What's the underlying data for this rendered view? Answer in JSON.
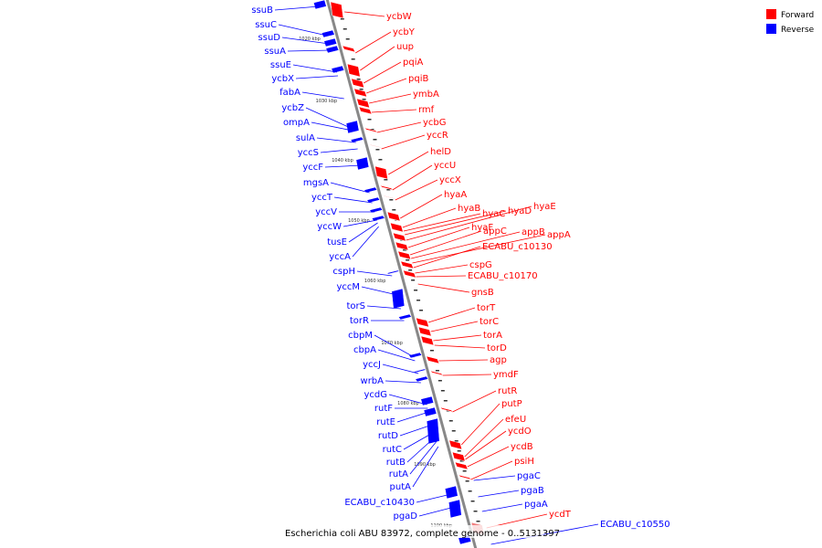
{
  "caption": "Escherichia coli ABU 83972, complete genome - 0..5131397",
  "legend": {
    "forward_label": "Forward",
    "reverse_label": "Reverse",
    "forward_color": "#ff0000",
    "reverse_color": "#0000ff"
  },
  "colors": {
    "axis": "#888888",
    "faded_forward": "#f08080"
  },
  "kbp_ticks": [
    "1020 kbp",
    "1030 kbp",
    "1040 kbp",
    "1050 kbp",
    "1060 kbp",
    "1070 kbp",
    "1080 kbp",
    "1090 kbp",
    "1100 kbp"
  ],
  "genes_reverse": [
    "ssuB",
    "ssuC",
    "ssuD",
    "ssuA",
    "ssuE",
    "ycbX",
    "fabA",
    "ycbZ",
    "ompA",
    "sulA",
    "yccS",
    "yccF",
    "mgsA",
    "yccT",
    "yccV",
    "yccW",
    "tusE",
    "yccA",
    "cspH",
    "yccM",
    "torS",
    "torR",
    "cbpM",
    "cbpA",
    "yccJ",
    "wrbA",
    "ycdG",
    "rutF",
    "rutE",
    "rutD",
    "rutC",
    "rutB",
    "rutA",
    "putA",
    "ECABU_c10430",
    "pgaD"
  ],
  "genes_forward": [
    "ycbW",
    "ycbY",
    "uup",
    "pqiA",
    "pqiB",
    "ymbA",
    "rmf",
    "ycbG",
    "yccR",
    "helD",
    "yccU",
    "yccX",
    "hyaA",
    "hyaB",
    "hyaC",
    "hyaD",
    "hyaE",
    "hyaF",
    "appC",
    "appB",
    "appA",
    "ECABU_c10130",
    "cspG",
    "ECABU_c10170",
    "gnsB",
    "torT",
    "torC",
    "torA",
    "torD",
    "agp",
    "ymdF",
    "rutR",
    "putP",
    "efeU",
    "ycdO",
    "ycdB",
    "psiH"
  ],
  "genes_reverse_right": [
    "pgaC",
    "pgaB",
    "pgaA",
    "ECABU_c10550"
  ],
  "genes_forward_lower": [
    "ycdT"
  ]
}
